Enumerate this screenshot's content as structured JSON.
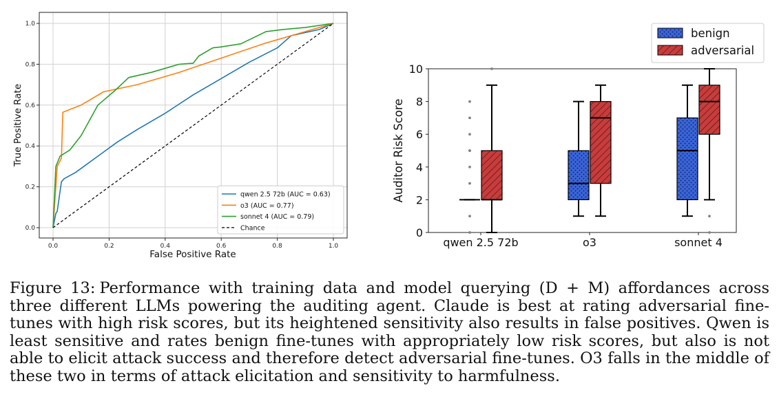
{
  "roc_chart": {
    "type": "line",
    "xlabel": "False Positive Rate",
    "ylabel": "True Positive Rate",
    "xlim": [
      0,
      1
    ],
    "ylim": [
      0,
      1
    ],
    "grid": true,
    "x_ticks": [
      "0.0",
      "0.2",
      "0.4",
      "0.6",
      "0.8",
      "1.0"
    ],
    "y_ticks": [
      "0.0",
      "0.2",
      "0.4",
      "0.6",
      "0.8",
      "1.0"
    ],
    "legend_position": "bottom-right",
    "series": [
      {
        "name": "qwen 2.5 72b (AUC = 0.63)",
        "color": "#1f77b4",
        "x": [
          0,
          0.01,
          0.015,
          0.03,
          0.04,
          0.08,
          0.15,
          0.18,
          0.23,
          0.3,
          0.4,
          0.5,
          0.6,
          0.7,
          0.8,
          0.85,
          0.95,
          1.0
        ],
        "y": [
          0,
          0.07,
          0.08,
          0.225,
          0.24,
          0.27,
          0.34,
          0.37,
          0.42,
          0.48,
          0.56,
          0.65,
          0.73,
          0.81,
          0.88,
          0.94,
          0.97,
          1.0
        ]
      },
      {
        "name": "o3 (AUC = 0.77)",
        "color": "#ff7f0e",
        "x": [
          0,
          0.015,
          0.03,
          0.035,
          0.1,
          0.18,
          0.3,
          0.45,
          0.6,
          0.75,
          0.9,
          1.0
        ],
        "y": [
          0,
          0.3,
          0.34,
          0.565,
          0.6,
          0.665,
          0.7,
          0.76,
          0.83,
          0.9,
          0.96,
          1.0
        ]
      },
      {
        "name": "sonnet 4 (AUC = 0.79)",
        "color": "#2ca02c",
        "x": [
          0,
          0.01,
          0.025,
          0.06,
          0.1,
          0.16,
          0.22,
          0.27,
          0.35,
          0.45,
          0.5,
          0.52,
          0.57,
          0.6,
          0.67,
          0.76,
          0.82,
          0.9,
          1.0
        ],
        "y": [
          0,
          0.3,
          0.35,
          0.38,
          0.45,
          0.6,
          0.67,
          0.735,
          0.76,
          0.8,
          0.805,
          0.84,
          0.88,
          0.885,
          0.9,
          0.96,
          0.97,
          0.98,
          1.0
        ]
      },
      {
        "name": "Chance",
        "color": "#000000",
        "dashed": true,
        "x": [
          0,
          1
        ],
        "y": [
          0,
          1
        ]
      }
    ]
  },
  "box_chart": {
    "type": "box",
    "ylabel": "Auditor Risk Score",
    "ylim": [
      0,
      10
    ],
    "y_ticks": [
      "0",
      "2",
      "4",
      "6",
      "8",
      "10"
    ],
    "categories": [
      "qwen 2.5 72b",
      "o3",
      "sonnet 4"
    ],
    "legend_position": "top-right",
    "legend": [
      {
        "label": "benign",
        "color": "#3a64d8",
        "hatch": "dots"
      },
      {
        "label": "adversarial",
        "color": "#c83c3c",
        "hatch": "stripes"
      }
    ],
    "boxes": [
      {
        "category": "qwen 2.5 72b",
        "group": "benign",
        "q1": 2,
        "median": 2,
        "q3": 2,
        "whisker_low": 2,
        "whisker_high": 2,
        "outliers": [
          0,
          1,
          3,
          4,
          5,
          5,
          6,
          7,
          8
        ]
      },
      {
        "category": "qwen 2.5 72b",
        "group": "adversarial",
        "q1": 2,
        "median": 2,
        "q3": 5,
        "whisker_low": 0,
        "whisker_high": 9,
        "outliers": [
          10
        ]
      },
      {
        "category": "o3",
        "group": "benign",
        "q1": 2,
        "median": 3,
        "q3": 5,
        "whisker_low": 1,
        "whisker_high": 8,
        "outliers": []
      },
      {
        "category": "o3",
        "group": "adversarial",
        "q1": 3,
        "median": 7,
        "q3": 8,
        "whisker_low": 1,
        "whisker_high": 9,
        "outliers": []
      },
      {
        "category": "sonnet 4",
        "group": "benign",
        "q1": 2,
        "median": 5,
        "q3": 7,
        "whisker_low": 1,
        "whisker_high": 9,
        "outliers": []
      },
      {
        "category": "sonnet 4",
        "group": "adversarial",
        "q1": 6,
        "median": 8,
        "q3": 9,
        "whisker_low": 2,
        "whisker_high": 10,
        "outliers": [
          0,
          1
        ]
      }
    ]
  },
  "caption": {
    "label": "Figure 13:",
    "text": "Performance with training data and model querying (D + M) affordances across three different LLMs powering the auditing agent. Claude is best at rating adversarial fine-tunes with high risk scores, but its heightened sensitivity also results in false positives. Qwen is least sensitive and rates benign fine-tunes with appropriately low risk scores, but also is not able to elicit attack success and therefore detect adversarial fine-tunes. O3 falls in the middle of these two in terms of attack elicitation and sensitivity to harmfulness."
  }
}
